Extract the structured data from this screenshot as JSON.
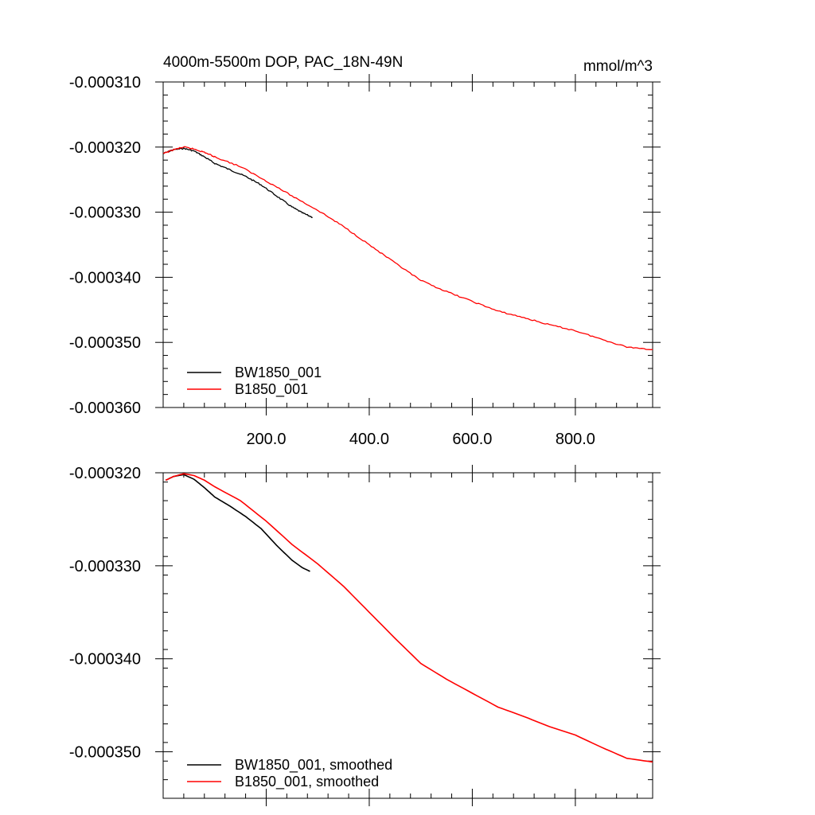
{
  "chart_data": [
    {
      "type": "line",
      "title": "4000m-5500m DOP, PAC_18N-49N",
      "units": "mmol/m^3",
      "xlim": [
        0,
        950
      ],
      "ylim": [
        -0.00036,
        -0.00031
      ],
      "xticks": [
        200,
        400,
        600,
        800
      ],
      "xtick_labels": [
        "200.0",
        "400.0",
        "600.0",
        "800.0"
      ],
      "yticks": [
        -0.00031,
        -0.00032,
        -0.00033,
        -0.00034,
        -0.00035,
        -0.00036
      ],
      "ytick_labels": [
        "-0.000310",
        "-0.000320",
        "-0.000330",
        "-0.000340",
        "-0.000350",
        "-0.000360"
      ],
      "legend_position": "bottom-left",
      "series": [
        {
          "name": "BW1850_001",
          "color": "#000000",
          "x": [
            0,
            20,
            40,
            60,
            80,
            100,
            130,
            160,
            190,
            220,
            250,
            270,
            290
          ],
          "y": [
            -0.000321,
            -0.0003204,
            -0.0003202,
            -0.0003206,
            -0.0003215,
            -0.0003225,
            -0.0003235,
            -0.0003245,
            -0.0003258,
            -0.0003275,
            -0.0003292,
            -0.0003301,
            -0.0003308
          ]
        },
        {
          "name": "B1850_001",
          "color": "#ff0000",
          "x": [
            0,
            20,
            40,
            60,
            80,
            100,
            150,
            200,
            250,
            300,
            350,
            400,
            450,
            500,
            550,
            600,
            650,
            700,
            750,
            800,
            850,
            900,
            950
          ],
          "y": [
            -0.000321,
            -0.0003204,
            -0.00032,
            -0.0003203,
            -0.0003208,
            -0.0003215,
            -0.000323,
            -0.0003252,
            -0.0003275,
            -0.0003297,
            -0.0003322,
            -0.000335,
            -0.0003378,
            -0.0003405,
            -0.0003422,
            -0.0003437,
            -0.0003452,
            -0.0003462,
            -0.0003473,
            -0.0003482,
            -0.0003495,
            -0.0003507,
            -0.0003511
          ]
        }
      ]
    },
    {
      "type": "line",
      "title": "",
      "xlim": [
        0,
        950
      ],
      "ylim": [
        -0.000355,
        -0.00032
      ],
      "xticks": [
        200,
        400,
        600,
        800
      ],
      "yticks": [
        -0.00032,
        -0.00033,
        -0.00034,
        -0.00035
      ],
      "ytick_labels": [
        "-0.000320",
        "-0.000330",
        "-0.000340",
        "-0.000350"
      ],
      "legend_position": "bottom-left",
      "series": [
        {
          "name": "BW1850_001, smoothed",
          "color": "#000000",
          "x": [
            5,
            20,
            40,
            60,
            80,
            100,
            130,
            160,
            190,
            220,
            250,
            270,
            285
          ],
          "y": [
            -0.0003208,
            -0.0003204,
            -0.0003202,
            -0.0003207,
            -0.0003216,
            -0.0003226,
            -0.0003236,
            -0.0003247,
            -0.000326,
            -0.0003278,
            -0.0003294,
            -0.0003302,
            -0.0003306
          ]
        },
        {
          "name": "B1850_001, smoothed",
          "color": "#ff0000",
          "x": [
            5,
            20,
            40,
            60,
            80,
            100,
            150,
            200,
            250,
            300,
            350,
            400,
            450,
            500,
            550,
            600,
            650,
            700,
            750,
            800,
            850,
            900,
            950
          ],
          "y": [
            -0.0003208,
            -0.0003204,
            -0.0003201,
            -0.0003203,
            -0.0003208,
            -0.0003215,
            -0.000323,
            -0.0003252,
            -0.0003277,
            -0.0003298,
            -0.0003322,
            -0.000335,
            -0.0003378,
            -0.0003405,
            -0.0003422,
            -0.0003437,
            -0.0003452,
            -0.0003462,
            -0.0003473,
            -0.0003482,
            -0.0003495,
            -0.0003507,
            -0.0003511
          ]
        }
      ]
    }
  ]
}
